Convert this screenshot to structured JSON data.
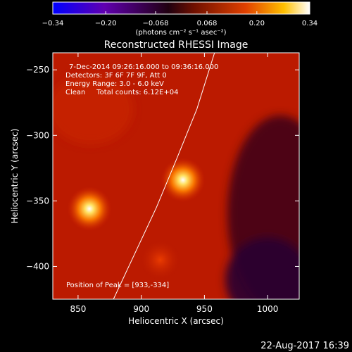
{
  "chart_data": {
    "type": "heatmap",
    "title": "Reconstructed RHESSI Image",
    "xlabel": "Heliocentric X (arcsec)",
    "ylabel": "Heliocentric Y (arcsec)",
    "xlim": [
      830,
      1025
    ],
    "ylim": [
      -425,
      -237
    ],
    "x_ticks": [
      850,
      900,
      950,
      1000
    ],
    "x_tick_labels": [
      "850",
      "900",
      "950",
      "1000"
    ],
    "y_ticks": [
      -250,
      -300,
      -350,
      -400
    ],
    "y_tick_labels": [
      "−250",
      "−300",
      "−350",
      "−400"
    ],
    "colorbar": {
      "ticks": [
        -0.34,
        -0.2,
        -0.068,
        0.068,
        0.2,
        0.34
      ],
      "tick_labels": [
        "−0.34",
        "−0.20",
        "−0.068",
        "0.068",
        "0.20",
        "0.34"
      ],
      "range": [
        -0.34,
        0.34
      ],
      "unit_label": "(photons cm⁻² s⁻¹ asec⁻²)"
    },
    "annotations": [
      "7-Dec-2014 09:26:16.000 to 09:36:16.000",
      "Detectors: 3F 6F 7F 9F, Att 0",
      "Energy Range: 3.0 - 6.0 keV",
      "Clean     Total counts: 6.12E+04",
      "Position of Peak = [933,-334]"
    ],
    "sources": [
      {
        "x": 933,
        "y": -334,
        "peak": 0.34
      },
      {
        "x": 859,
        "y": -356,
        "peak": 0.29
      },
      {
        "x": 915,
        "y": -395,
        "peak": 0.12
      }
    ],
    "background_level": 0.1,
    "limb_curve": [
      [
        878,
        -425
      ],
      [
        895,
        -390
      ],
      [
        912,
        -355
      ],
      [
        928,
        -318
      ],
      [
        944,
        -280
      ],
      [
        958,
        -237
      ]
    ],
    "date_stamp": "22-Aug-2017 16:39",
    "grid": false
  }
}
